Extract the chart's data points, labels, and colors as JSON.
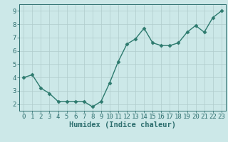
{
  "x": [
    0,
    1,
    2,
    3,
    4,
    5,
    6,
    7,
    8,
    9,
    10,
    11,
    12,
    13,
    14,
    15,
    16,
    17,
    18,
    19,
    20,
    21,
    22,
    23
  ],
  "y": [
    4.0,
    4.2,
    3.2,
    2.8,
    2.2,
    2.2,
    2.2,
    2.2,
    1.8,
    2.2,
    3.6,
    5.2,
    6.5,
    6.9,
    7.7,
    6.6,
    6.4,
    6.4,
    6.6,
    7.4,
    7.9,
    7.4,
    8.5,
    9.0
  ],
  "line_color": "#2d7a6e",
  "marker": "D",
  "marker_size": 2.5,
  "bg_color": "#cce8e8",
  "grid_color": "#b0cccc",
  "xlabel": "Humidex (Indice chaleur)",
  "ylabel": "",
  "ylim": [
    1.5,
    9.5
  ],
  "xlim": [
    -0.5,
    23.5
  ],
  "yticks": [
    2,
    3,
    4,
    5,
    6,
    7,
    8,
    9
  ],
  "xticks": [
    0,
    1,
    2,
    3,
    4,
    5,
    6,
    7,
    8,
    9,
    10,
    11,
    12,
    13,
    14,
    15,
    16,
    17,
    18,
    19,
    20,
    21,
    22,
    23
  ],
  "tick_color": "#2d6e6e",
  "axis_color": "#2d6e6e",
  "xlabel_fontsize": 7.5,
  "tick_fontsize": 6.5
}
